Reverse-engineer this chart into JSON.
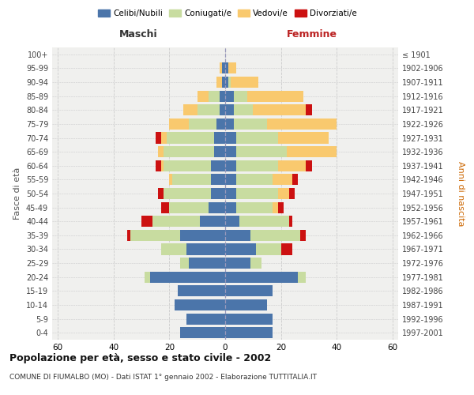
{
  "age_groups": [
    "0-4",
    "5-9",
    "10-14",
    "15-19",
    "20-24",
    "25-29",
    "30-34",
    "35-39",
    "40-44",
    "45-49",
    "50-54",
    "55-59",
    "60-64",
    "65-69",
    "70-74",
    "75-79",
    "80-84",
    "85-89",
    "90-94",
    "95-99",
    "100+"
  ],
  "birth_years": [
    "1997-2001",
    "1992-1996",
    "1987-1991",
    "1982-1986",
    "1977-1981",
    "1972-1976",
    "1967-1971",
    "1962-1966",
    "1957-1961",
    "1952-1956",
    "1947-1951",
    "1942-1946",
    "1937-1941",
    "1932-1936",
    "1927-1931",
    "1922-1926",
    "1917-1921",
    "1912-1916",
    "1907-1911",
    "1902-1906",
    "≤ 1901"
  ],
  "maschi": {
    "celibi": [
      16,
      14,
      18,
      17,
      27,
      13,
      14,
      16,
      9,
      6,
      5,
      5,
      5,
      4,
      4,
      3,
      2,
      2,
      1,
      1,
      0
    ],
    "coniugati": [
      0,
      0,
      0,
      0,
      2,
      3,
      9,
      18,
      17,
      14,
      17,
      14,
      17,
      18,
      17,
      10,
      8,
      4,
      0,
      0,
      0
    ],
    "vedovi": [
      0,
      0,
      0,
      0,
      0,
      0,
      0,
      0,
      0,
      0,
      0,
      1,
      1,
      2,
      2,
      7,
      5,
      4,
      2,
      1,
      0
    ],
    "divorziati": [
      0,
      0,
      0,
      0,
      0,
      0,
      0,
      1,
      4,
      3,
      2,
      0,
      2,
      0,
      2,
      0,
      0,
      0,
      0,
      0,
      0
    ]
  },
  "femmine": {
    "nubili": [
      17,
      17,
      15,
      17,
      26,
      9,
      11,
      9,
      5,
      4,
      4,
      4,
      4,
      4,
      4,
      3,
      3,
      3,
      1,
      1,
      0
    ],
    "coniugate": [
      0,
      0,
      0,
      0,
      3,
      4,
      9,
      18,
      18,
      13,
      15,
      13,
      15,
      18,
      15,
      12,
      7,
      5,
      1,
      0,
      0
    ],
    "vedove": [
      0,
      0,
      0,
      0,
      0,
      0,
      0,
      0,
      0,
      2,
      4,
      7,
      10,
      18,
      18,
      25,
      19,
      20,
      10,
      3,
      0
    ],
    "divorziate": [
      0,
      0,
      0,
      0,
      0,
      0,
      4,
      2,
      1,
      2,
      2,
      2,
      2,
      0,
      0,
      0,
      2,
      0,
      0,
      0,
      0
    ]
  },
  "colors": {
    "celibi": "#4b75aa",
    "coniugati": "#c8dca0",
    "vedovi": "#f9c96e",
    "divorziati": "#cc1111"
  },
  "legend_labels": [
    "Celibi/Nubili",
    "Coniugati/e",
    "Vedovi/e",
    "Divorziati/e"
  ],
  "title": "Popolazione per età, sesso e stato civile - 2002",
  "subtitle": "COMUNE DI FIUMALBO (MO) - Dati ISTAT 1° gennaio 2002 - Elaborazione TUTTITALIA.IT",
  "xlabel_left": "Maschi",
  "xlabel_right": "Femmine",
  "ylabel_left": "Fasce di età",
  "ylabel_right": "Anni di nascita",
  "xlim": 62,
  "bg_color": "#ffffff",
  "plot_bg": "#f0f0ee",
  "grid_color": "#cccccc"
}
